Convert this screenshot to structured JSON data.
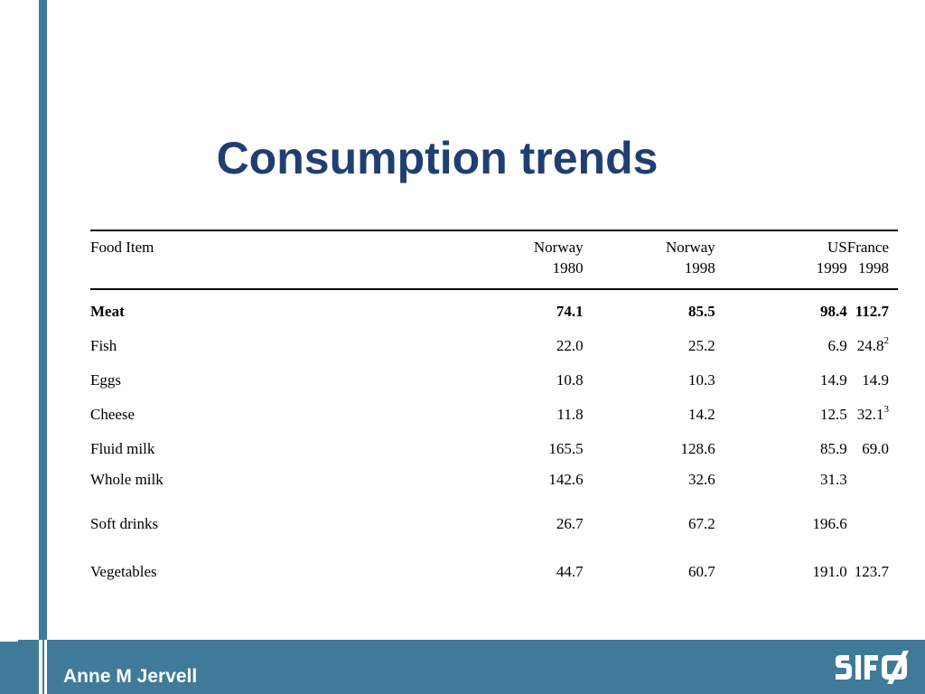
{
  "slide": {
    "title": "Consumption trends",
    "author": "Anne M Jervell",
    "logo_text": "SIFO"
  },
  "table": {
    "headers": [
      {
        "line1": "Food Item",
        "line2": ""
      },
      {
        "line1": "Norway",
        "line2": "1980"
      },
      {
        "line1": "Norway",
        "line2": "1998"
      },
      {
        "line1": "US",
        "line2": "1999"
      },
      {
        "line1": "France",
        "line2": "1998"
      }
    ],
    "rows": [
      {
        "item": "Meat",
        "v1": "74.1",
        "v2": "85.5",
        "v3": "98.4",
        "v4": "112.7",
        "v4_note": "",
        "bold": true
      },
      {
        "item": "Fish",
        "v1": "22.0",
        "v2": "25.2",
        "v3": "6.9",
        "v4": "24.8",
        "v4_note": "2"
      },
      {
        "item": "Eggs",
        "v1": "10.8",
        "v2": "10.3",
        "v3": "14.9",
        "v4": "14.9",
        "v4_note": ""
      },
      {
        "item": "Cheese",
        "v1": "11.8",
        "v2": "14.2",
        "v3": "12.5",
        "v4": "32.1",
        "v4_note": "3"
      },
      {
        "item": "Fluid milk",
        "v1": "165.5",
        "v2": "128.6",
        "v3": "85.9",
        "v4": "69.0",
        "v4_note": ""
      },
      {
        "item": "Whole milk",
        "v1": "142.6",
        "v2": "32.6",
        "v3": "31.3",
        "v4": "",
        "v4_note": ""
      },
      {
        "item": "Soft drinks",
        "v1": "26.7",
        "v2": "67.2",
        "v3": "196.6",
        "v4": "",
        "v4_note": ""
      },
      {
        "item": "Vegetables",
        "v1": "44.7",
        "v2": "60.7",
        "v3": "191.0",
        "v4": "123.7",
        "v4_note": ""
      }
    ]
  },
  "colors": {
    "accent_bar": "#3f7a99",
    "title": "#1f3f73"
  }
}
